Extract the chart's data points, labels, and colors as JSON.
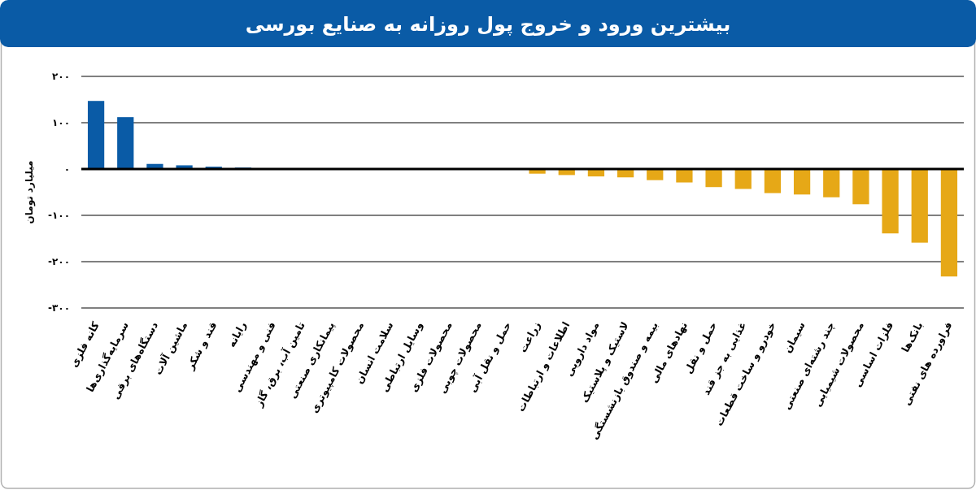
{
  "chart_data": {
    "type": "bar",
    "title": "بیشترین ورود و خروج پول روزانه به صنایع بورسی",
    "ylabel": "میلیارد تومان",
    "categories": [
      "کانه فلزی",
      "سرمایه‌گذاری‌ها",
      "دستگاه‌های برقی",
      "ماشین آلات",
      "قند و شکر",
      "رایانه",
      "فنی و مهندسی",
      "تامین آب، برق، گاز",
      "پیمانکاری صنعتی",
      "محصولات کامپیوتری",
      "سلامت انسان",
      "وسایل ارتباطی",
      "محصولات فلزی",
      "محصولات چوبی",
      "حمل و نقل آبی",
      "زراعت",
      "اطلاعات و ارتباطات",
      "مواد دارویی",
      "لاستیک و پلاستیک",
      "بیمه و صندوق بازنشستگی",
      "نهادهای مالی",
      "حمل و نقل",
      "غذایی به جز قند",
      "خودرو و ساخت قطعات",
      "سیمان",
      "چند رشته‌ای صنعتی",
      "محصولات شیمیایی",
      "فلزات اساسی",
      "بانک‌ها",
      "فراورده های نفتی"
    ],
    "values": [
      147,
      112,
      11,
      8,
      5,
      3,
      0,
      0,
      0,
      0,
      0,
      0,
      0,
      0,
      0,
      -10,
      -13,
      -16,
      -18,
      -24,
      -29,
      -39,
      -43,
      -52,
      -55,
      -61,
      -76,
      -139,
      -159,
      -232
    ],
    "colors": [
      "#0a5ba6",
      "#0a5ba6",
      "#0a5ba6",
      "#0a5ba6",
      "#0a5ba6",
      "#0a5ba6",
      "#0a5ba6",
      "#0a5ba6",
      "#0a5ba6",
      "#0a5ba6",
      "#0a5ba6",
      "#0a5ba6",
      "#0a5ba6",
      "#0a5ba6",
      "#0a5ba6",
      "#e6a817",
      "#e6a817",
      "#e6a817",
      "#e6a817",
      "#e6a817",
      "#e6a817",
      "#e6a817",
      "#e6a817",
      "#e6a817",
      "#e6a817",
      "#e6a817",
      "#e6a817",
      "#e6a817",
      "#e6a817",
      "#e6a817"
    ],
    "ylim": [
      -300,
      200
    ],
    "yticks": [
      {
        "value": -300,
        "label": "-۳۰۰"
      },
      {
        "value": -200,
        "label": "-۲۰۰"
      },
      {
        "value": -100,
        "label": "-۱۰۰"
      },
      {
        "value": 0,
        "label": "۰"
      },
      {
        "value": 100,
        "label": "۱۰۰"
      },
      {
        "value": 200,
        "label": "۲۰۰"
      }
    ],
    "grid": "y"
  }
}
